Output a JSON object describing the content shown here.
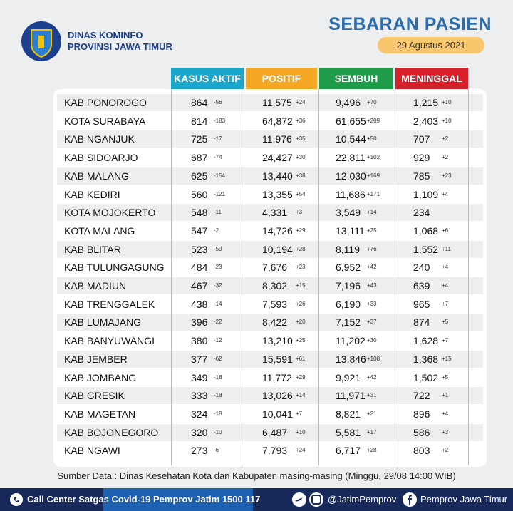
{
  "header": {
    "org_line1": "DINAS KOMINFO",
    "org_line2": "PROVINSI JAWA TIMUR",
    "title": "SEBARAN PASIEN",
    "date": "29 Agustus 2021"
  },
  "table": {
    "columns": [
      "KASUS AKTIF",
      "POSITIF",
      "SEMBUH",
      "MENINGGAL"
    ],
    "rows": [
      [
        "KAB PONOROGO",
        "864",
        "-56",
        "11,575",
        "+24",
        "9,496",
        "+70",
        "1,215",
        "+10"
      ],
      [
        "KOTA SURABAYA",
        "814",
        "-183",
        "64,872",
        "+36",
        "61,655",
        "+209",
        "2,403",
        "+10"
      ],
      [
        "KAB NGANJUK",
        "725",
        "-17",
        "11,976",
        "+35",
        "10,544",
        "+50",
        "707",
        "+2"
      ],
      [
        "KAB SIDOARJO",
        "687",
        "-74",
        "24,427",
        "+30",
        "22,811",
        "+102",
        "929",
        "+2"
      ],
      [
        "KAB MALANG",
        "625",
        "-154",
        "13,440",
        "+38",
        "12,030",
        "+169",
        "785",
        "+23"
      ],
      [
        "KAB KEDIRI",
        "560",
        "-121",
        "13,355",
        "+54",
        "11,686",
        "+171",
        "1,109",
        "+4"
      ],
      [
        "KOTA MOJOKERTO",
        "548",
        "-11",
        "4,331",
        "+3",
        "3,549",
        "+14",
        "234"
      ],
      [
        "KOTA MALANG",
        "547",
        "-2",
        "14,726",
        "+29",
        "13,111",
        "+25",
        "1,068",
        "+6"
      ],
      [
        "KAB BLITAR",
        "523",
        "-59",
        "10,194",
        "+28",
        "8,119",
        "+76",
        "1,552",
        "+11"
      ],
      [
        "KAB TULUNGAGUNG",
        "484",
        "-23",
        "7,676",
        "+23",
        "6,952",
        "+42",
        "240",
        "+4"
      ],
      [
        "KAB MADIUN",
        "467",
        "-32",
        "8,302",
        "+15",
        "7,196",
        "+43",
        "639",
        "+4"
      ],
      [
        "KAB TRENGGALEK",
        "438",
        "-14",
        "7,593",
        "+26",
        "6,190",
        "+33",
        "965",
        "+7"
      ],
      [
        "KAB LUMAJANG",
        "396",
        "-22",
        "8,422",
        "+20",
        "7,152",
        "+37",
        "874",
        "+5"
      ],
      [
        "KAB BANYUWANGI",
        "380",
        "-12",
        "13,210",
        "+25",
        "11,202",
        "+30",
        "1,628",
        "+7"
      ],
      [
        "KAB JEMBER",
        "377",
        "-62",
        "15,591",
        "+61",
        "13,846",
        "+108",
        "1,368",
        "+15"
      ],
      [
        "KAB JOMBANG",
        "349",
        "-18",
        "11,772",
        "+29",
        "9,921",
        "+42",
        "1,502",
        "+5"
      ],
      [
        "KAB GRESIK",
        "333",
        "-18",
        "13,026",
        "+14",
        "11,971",
        "+31",
        "722",
        "+1"
      ],
      [
        "KAB MAGETAN",
        "324",
        "-18",
        "10,041",
        "+7",
        "8,821",
        "+21",
        "896",
        "+4"
      ],
      [
        "KAB BOJONEGORO",
        "320",
        "-10",
        "6,487",
        "+10",
        "5,581",
        "+17",
        "586",
        "+3"
      ],
      [
        "KAB NGAWI",
        "273",
        "-6",
        "7,793",
        "+24",
        "6,717",
        "+28",
        "803",
        "+2"
      ]
    ]
  },
  "footer": {
    "source": "Sumber Data : Dinas Kesehatan Kota dan Kabupaten masing-masing (Minggu, 29/08 14:00 WIB)",
    "call_center": "Call Center Satgas Covid-19 Pemprov Jatim 1500 117",
    "twitter_instagram": "@JatimPemprov",
    "facebook": "Pemprov Jawa Timur"
  }
}
